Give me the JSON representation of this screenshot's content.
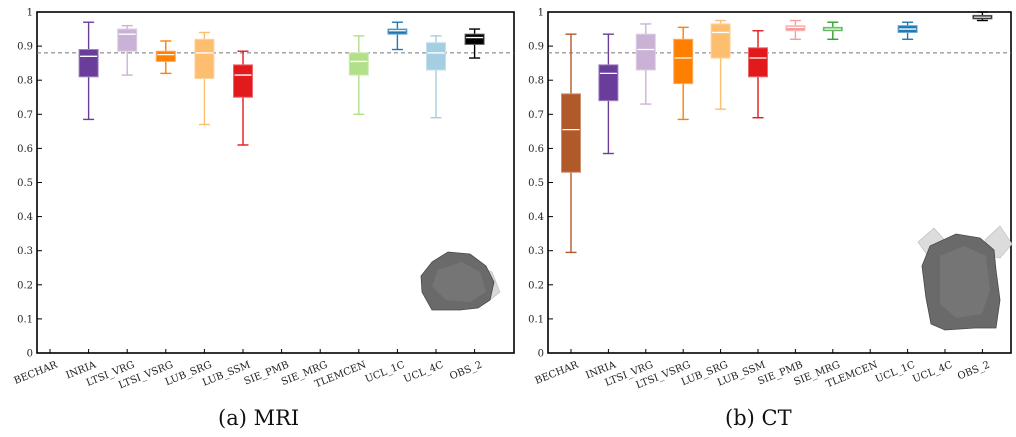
{
  "captions": {
    "a": "(a) MRI",
    "b": "(b) CT"
  },
  "chart_data": [
    {
      "type": "box",
      "title": "",
      "subtitle": "(a) MRI",
      "xlabel": "",
      "ylabel": "",
      "ylim": [
        0,
        1
      ],
      "yticks": [
        0,
        0.1,
        0.2,
        0.3,
        0.4,
        0.5,
        0.6,
        0.7,
        0.8,
        0.9,
        1
      ],
      "ytick_labels": [
        "0",
        "0.1",
        "0.2",
        "0.3",
        "0.4",
        "0.5",
        "0.6",
        "0.7",
        "0.8",
        "0.9",
        "1"
      ],
      "reference_line": 0.88,
      "grid": false,
      "categories": [
        "BECHAR",
        "INRIA",
        "LTSI_VRG",
        "LTSI_VSRG",
        "LUB_SRG",
        "LUB_SSM",
        "SIE_PMB",
        "SIE_MRG",
        "TLEMCEN",
        "UCL_1C",
        "UCL_4C",
        "OBS_2"
      ],
      "boxes": [
        null,
        {
          "whislo": 0.685,
          "q1": 0.81,
          "med": 0.87,
          "q3": 0.89,
          "whishi": 0.97,
          "color": "#6a3d9a"
        },
        {
          "whislo": 0.815,
          "q1": 0.885,
          "med": 0.935,
          "q3": 0.95,
          "whishi": 0.96,
          "color": "#cab2d6"
        },
        {
          "whislo": 0.82,
          "q1": 0.855,
          "med": 0.875,
          "q3": 0.885,
          "whishi": 0.915,
          "color": "#ff7f00"
        },
        {
          "whislo": 0.67,
          "q1": 0.805,
          "med": 0.88,
          "q3": 0.92,
          "whishi": 0.94,
          "color": "#fdbf6f"
        },
        {
          "whislo": 0.61,
          "q1": 0.75,
          "med": 0.815,
          "q3": 0.845,
          "whishi": 0.885,
          "color": "#e31a1c"
        },
        null,
        null,
        {
          "whislo": 0.7,
          "q1": 0.815,
          "med": 0.855,
          "q3": 0.88,
          "whishi": 0.93,
          "color": "#b2df8a"
        },
        {
          "whislo": 0.89,
          "q1": 0.935,
          "med": 0.945,
          "q3": 0.95,
          "whishi": 0.97,
          "color": "#1f78b4"
        },
        {
          "whislo": 0.69,
          "q1": 0.83,
          "med": 0.88,
          "q3": 0.91,
          "whishi": 0.93,
          "color": "#a6cee3"
        },
        {
          "whislo": 0.865,
          "q1": 0.905,
          "med": 0.925,
          "q3": 0.935,
          "whishi": 0.95,
          "color": "#000000"
        }
      ]
    },
    {
      "type": "box",
      "title": "",
      "subtitle": "(b) CT",
      "xlabel": "",
      "ylabel": "",
      "ylim": [
        0,
        1
      ],
      "yticks": [
        0,
        0.1,
        0.2,
        0.3,
        0.4,
        0.5,
        0.6,
        0.7,
        0.8,
        0.9,
        1
      ],
      "ytick_labels": [
        "0",
        "0.1",
        "0.2",
        "0.3",
        "0.4",
        "0.5",
        "0.6",
        "0.7",
        "0.8",
        "0.9",
        "1"
      ],
      "reference_line": 0.88,
      "grid": false,
      "categories": [
        "BECHAR",
        "INRIA",
        "LTSI_VRG",
        "LTSI_VSRG",
        "LUB_SRG",
        "LUB_SSM",
        "SIE_PMB",
        "SIE_MRG",
        "TLEMCEN",
        "UCL_1C",
        "UCL_4C",
        "OBS_2"
      ],
      "boxes": [
        {
          "whislo": 0.295,
          "q1": 0.53,
          "med": 0.655,
          "q3": 0.76,
          "whishi": 0.935,
          "color": "#b15928"
        },
        {
          "whislo": 0.585,
          "q1": 0.74,
          "med": 0.82,
          "q3": 0.845,
          "whishi": 0.935,
          "color": "#6a3d9a"
        },
        {
          "whislo": 0.73,
          "q1": 0.83,
          "med": 0.89,
          "q3": 0.935,
          "whishi": 0.965,
          "color": "#cab2d6"
        },
        {
          "whislo": 0.685,
          "q1": 0.79,
          "med": 0.865,
          "q3": 0.92,
          "whishi": 0.955,
          "color": "#ff7f00"
        },
        {
          "whislo": 0.715,
          "q1": 0.865,
          "med": 0.94,
          "q3": 0.965,
          "whishi": 0.975,
          "color": "#fdbf6f"
        },
        {
          "whislo": 0.69,
          "q1": 0.81,
          "med": 0.865,
          "q3": 0.895,
          "whishi": 0.945,
          "color": "#e31a1c"
        },
        {
          "whislo": 0.92,
          "q1": 0.945,
          "med": 0.955,
          "q3": 0.96,
          "whishi": 0.975,
          "color": "#fb9a99"
        },
        {
          "whislo": 0.92,
          "q1": 0.945,
          "med": 0.95,
          "q3": 0.955,
          "whishi": 0.97,
          "color": "#33a02c"
        },
        null,
        {
          "whislo": 0.92,
          "q1": 0.94,
          "med": 0.95,
          "q3": 0.96,
          "whishi": 0.97,
          "color": "#1f78b4"
        },
        null,
        {
          "whislo": 0.975,
          "q1": 0.98,
          "med": 0.985,
          "q3": 0.99,
          "whishi": 1.0,
          "color": "#000000"
        }
      ]
    }
  ]
}
